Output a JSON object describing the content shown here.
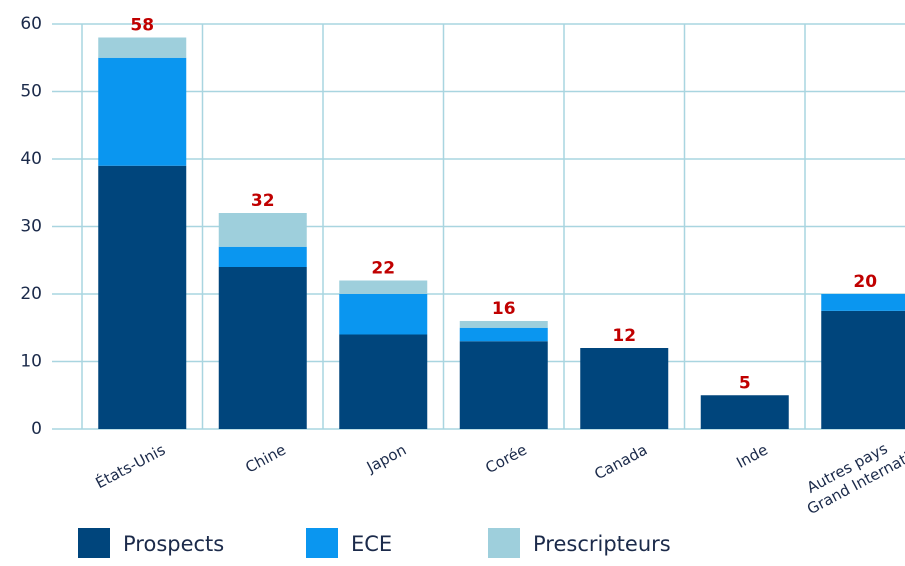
{
  "chart_data": {
    "type": "stacked_bar",
    "categories": [
      "États-Unis",
      "Chine",
      "Japon",
      "Corée",
      "Canada",
      "Inde",
      "Autres pays Grand International"
    ],
    "series": [
      {
        "name": "Prospects",
        "color": "#00457c",
        "values": [
          39,
          24,
          14,
          13,
          12,
          5,
          17.5
        ]
      },
      {
        "name": "ECE",
        "color": "#0a96f0",
        "values": [
          16,
          3,
          6,
          2,
          0,
          0,
          2.5
        ]
      },
      {
        "name": "Prescripteurs",
        "color": "#9ecfdc",
        "values": [
          3,
          5,
          2,
          1,
          0,
          0,
          0
        ]
      }
    ],
    "totals": [
      58,
      32,
      22,
      16,
      12,
      5,
      20
    ],
    "ylim": [
      0,
      60
    ],
    "yticks": [
      0,
      10,
      20,
      30,
      40,
      50,
      60
    ],
    "grid": true,
    "legend": "bottom"
  }
}
